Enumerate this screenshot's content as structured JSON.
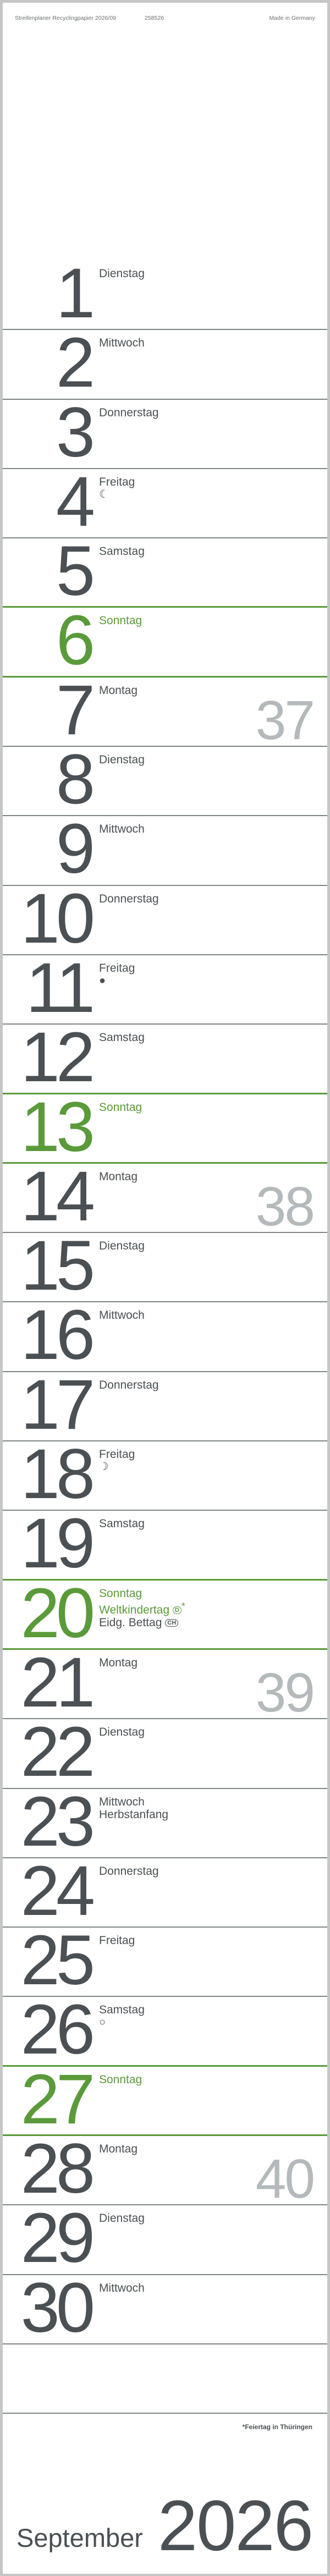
{
  "header": {
    "product": "Streifenplaner Recyclingpapier 2026/09",
    "code": "258526",
    "origin": "Made in Germany"
  },
  "colors": {
    "text": "#4a5053",
    "sunday": "#5a9a3a",
    "week_number": "#b4b9bb",
    "divider": "#7e8587"
  },
  "rows": [
    {
      "day": "1",
      "name": "Dienstag"
    },
    {
      "day": "2",
      "name": "Mittwoch"
    },
    {
      "day": "3",
      "name": "Donnerstag"
    },
    {
      "day": "4",
      "name": "Freitag",
      "moon": "☾",
      "moon_icon": "last-quarter-moon-icon"
    },
    {
      "day": "5",
      "name": "Samstag",
      "sat": true
    },
    {
      "day": "6",
      "name": "Sonntag",
      "sun": true
    },
    {
      "day": "7",
      "name": "Montag",
      "week": "37"
    },
    {
      "day": "8",
      "name": "Dienstag"
    },
    {
      "day": "9",
      "name": "Mittwoch"
    },
    {
      "day": "10",
      "name": "Donnerstag"
    },
    {
      "day": "11",
      "name": "Freitag",
      "moon": "●",
      "moon_icon": "new-moon-icon"
    },
    {
      "day": "12",
      "name": "Samstag",
      "sat": true
    },
    {
      "day": "13",
      "name": "Sonntag",
      "sun": true
    },
    {
      "day": "14",
      "name": "Montag",
      "week": "38"
    },
    {
      "day": "15",
      "name": "Dienstag"
    },
    {
      "day": "16",
      "name": "Mittwoch"
    },
    {
      "day": "17",
      "name": "Donnerstag"
    },
    {
      "day": "18",
      "name": "Freitag",
      "moon": "☽",
      "moon_icon": "first-quarter-moon-icon"
    },
    {
      "day": "19",
      "name": "Samstag",
      "sat": true
    },
    {
      "day": "20",
      "name": "Sonntag",
      "sun": true,
      "extra": [
        {
          "text": "Weltkindertag",
          "badge": "D",
          "suffix": "*",
          "green": true
        },
        {
          "text": "Eidg. Bettag",
          "badge": "CH",
          "green": false
        }
      ]
    },
    {
      "day": "21",
      "name": "Montag",
      "week": "39"
    },
    {
      "day": "22",
      "name": "Dienstag"
    },
    {
      "day": "23",
      "name": "Mittwoch",
      "extra": [
        {
          "text": "Herbstanfang"
        }
      ]
    },
    {
      "day": "24",
      "name": "Donnerstag"
    },
    {
      "day": "25",
      "name": "Freitag"
    },
    {
      "day": "26",
      "name": "Samstag",
      "sat": true,
      "moon": "○",
      "moon_icon": "full-moon-icon"
    },
    {
      "day": "27",
      "name": "Sonntag",
      "sun": true
    },
    {
      "day": "28",
      "name": "Montag",
      "week": "40"
    },
    {
      "day": "29",
      "name": "Dienstag"
    },
    {
      "day": "30",
      "name": "Mittwoch"
    }
  ],
  "footer": {
    "note": "*Feiertag in Thüringen",
    "month": "September",
    "year": "2026"
  }
}
